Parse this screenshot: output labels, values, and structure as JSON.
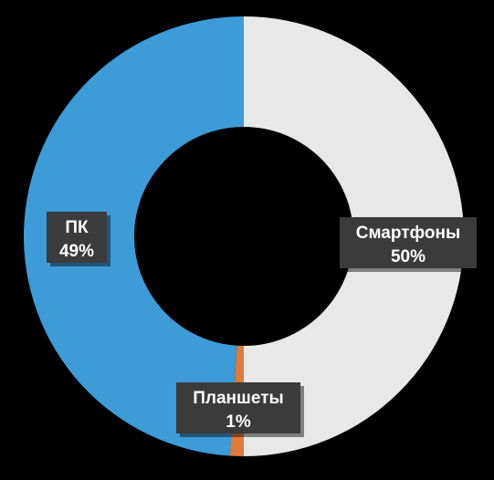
{
  "chart_data": {
    "type": "pie",
    "variant": "donut",
    "title": "",
    "categories": [
      "Смартфоны",
      "Планшеты",
      "ПК"
    ],
    "values": [
      50,
      1,
      49
    ],
    "value_labels": [
      "50%",
      "1%",
      "49%"
    ],
    "colors": [
      "#e8e8e8",
      "#e07b39",
      "#3d9bd8"
    ],
    "label_box_color": "#3b3b3b",
    "start_angle_deg": 0,
    "direction": "clockwise",
    "legend": "none",
    "background": "#000000"
  }
}
